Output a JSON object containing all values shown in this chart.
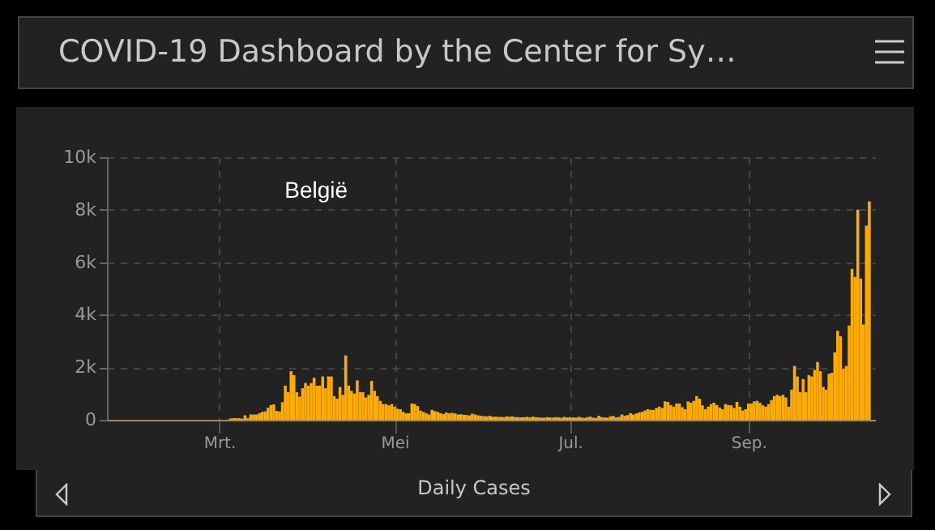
{
  "chart_data": {
    "type": "bar",
    "title": "COVID-19 Dashboard by the Center for Sy…",
    "subtitle": "België",
    "xlabel": "Daily Cases",
    "x": [
      "--03-01",
      "--03-02",
      "--03-03",
      "--03-04",
      "--03-05",
      "--03-06",
      "--03-07",
      "--03-08",
      "--03-09",
      "--03-10",
      "--03-11",
      "--03-12",
      "--03-13",
      "--03-14",
      "--03-15",
      "--03-16",
      "--03-17",
      "--03-18",
      "--03-19",
      "--03-20",
      "--03-21",
      "--03-22",
      "--03-23",
      "--03-24",
      "--03-25",
      "--03-26",
      "--03-27",
      "--03-28",
      "--03-29",
      "--03-30",
      "--03-31",
      "--04-01",
      "--04-02",
      "--04-03",
      "--04-04",
      "--04-05",
      "--04-06",
      "--04-07",
      "--04-08",
      "--04-09",
      "--04-10",
      "--04-11",
      "--04-12",
      "--04-13",
      "--04-14",
      "--04-15",
      "--04-16",
      "--04-17",
      "--04-18",
      "--04-19",
      "--04-20",
      "--04-21",
      "--04-22",
      "--04-23",
      "--04-24",
      "--04-25",
      "--04-26",
      "--04-27",
      "--04-28",
      "--04-29",
      "--04-30",
      "--05-01",
      "--05-02",
      "--05-03",
      "--05-04",
      "--05-05",
      "--05-06",
      "--05-07",
      "--05-08",
      "--05-09",
      "--05-10",
      "--05-11",
      "--05-12",
      "--05-13",
      "--05-14",
      "--05-15",
      "--05-16",
      "--05-17",
      "--05-18",
      "--05-19",
      "--05-20",
      "--05-21",
      "--05-22",
      "--05-23",
      "--05-24",
      "--05-25",
      "--05-26",
      "--05-27",
      "--05-28",
      "--05-29",
      "--05-30",
      "--05-31",
      "--06-01",
      "--06-02",
      "--06-03",
      "--06-04",
      "--06-05",
      "--06-06",
      "--06-07",
      "--06-08",
      "--06-09",
      "--06-10",
      "--06-11",
      "--06-12",
      "--06-13",
      "--06-14",
      "--06-15",
      "--06-16",
      "--06-17",
      "--06-18",
      "--06-19",
      "--06-20",
      "--06-21",
      "--06-22",
      "--06-23",
      "--06-24",
      "--06-25",
      "--06-26",
      "--06-27",
      "--06-28",
      "--06-29",
      "--06-30",
      "--07-01",
      "--07-02",
      "--07-03",
      "--07-04",
      "--07-05",
      "--07-06",
      "--07-07",
      "--07-08",
      "--07-09",
      "--07-10",
      "--07-11",
      "--07-12",
      "--07-13",
      "--07-14",
      "--07-15",
      "--07-16",
      "--07-17",
      "--07-18",
      "--07-19",
      "--07-20",
      "--07-21",
      "--07-22",
      "--07-23",
      "--07-24",
      "--07-25",
      "--07-26",
      "--07-27",
      "--07-28",
      "--07-29",
      "--07-30",
      "--07-31",
      "--08-01",
      "--08-02",
      "--08-03",
      "--08-04",
      "--08-05",
      "--08-06",
      "--08-07",
      "--08-08",
      "--08-09",
      "--08-10",
      "--08-11",
      "--08-12",
      "--08-13",
      "--08-14",
      "--08-15",
      "--08-16",
      "--08-17",
      "--08-18",
      "--08-19",
      "--08-20",
      "--08-21",
      "--08-22",
      "--08-23",
      "--08-24",
      "--08-25",
      "--08-26",
      "--08-27",
      "--08-28",
      "--08-29",
      "--08-30",
      "--08-31",
      "--09-01",
      "--09-02",
      "--09-03",
      "--09-04",
      "--09-05",
      "--09-06",
      "--09-07",
      "--09-08",
      "--09-09",
      "--09-10",
      "--09-11",
      "--09-12",
      "--09-13",
      "--09-14",
      "--09-15",
      "--09-16",
      "--09-17",
      "--09-18",
      "--09-19",
      "--09-20",
      "--09-21",
      "--09-22",
      "--09-23",
      "--09-24",
      "--09-25",
      "--09-26",
      "--09-27",
      "--09-28",
      "--09-29",
      "--09-30",
      "--10-01",
      "--10-02",
      "--10-03",
      "--10-04",
      "--10-05",
      "--10-06",
      "--10-07",
      "--10-08",
      "--10-09",
      "--10-10",
      "--10-11",
      "--10-12",
      "--10-13"
    ],
    "values": [
      0,
      0,
      0,
      10,
      50,
      60,
      60,
      60,
      40,
      170,
      60,
      200,
      200,
      200,
      250,
      300,
      320,
      460,
      560,
      590,
      340,
      320,
      670,
      1300,
      1050,
      1850,
      1700,
      1050,
      880,
      1200,
      1400,
      1300,
      1400,
      1600,
      1300,
      1300,
      1650,
      1200,
      1650,
      1650,
      900,
      800,
      1250,
      950,
      2450,
      1300,
      1100,
      1000,
      1500,
      1050,
      1050,
      850,
      950,
      1480,
      1100,
      900,
      720,
      600,
      600,
      550,
      600,
      500,
      420,
      400,
      300,
      250,
      250,
      620,
      600,
      520,
      350,
      300,
      250,
      200,
      380,
      330,
      300,
      250,
      220,
      280,
      250,
      260,
      240,
      200,
      210,
      190,
      180,
      170,
      230,
      200,
      170,
      150,
      140,
      130,
      150,
      120,
      120,
      110,
      110,
      100,
      130,
      120,
      130,
      100,
      100,
      90,
      100,
      110,
      90,
      120,
      100,
      90,
      80,
      80,
      100,
      90,
      80,
      100,
      90,
      80,
      110,
      90,
      100,
      90,
      80,
      110,
      90,
      70,
      100,
      120,
      80,
      70,
      150,
      100,
      90,
      80,
      130,
      150,
      90,
      110,
      200,
      150,
      180,
      250,
      200,
      240,
      280,
      300,
      350,
      400,
      380,
      370,
      450,
      500,
      450,
      700,
      680,
      560,
      500,
      620,
      620,
      480,
      400,
      700,
      650,
      720,
      900,
      800,
      550,
      400,
      500,
      600,
      650,
      560,
      470,
      400,
      600,
      560,
      550,
      450,
      680,
      500,
      350,
      400,
      620,
      620,
      700,
      720,
      650,
      550,
      500,
      600,
      750,
      900,
      950,
      900,
      950,
      850,
      500,
      1150,
      2050,
      1650,
      1050,
      1550,
      1050,
      1700,
      1650,
      1900,
      2200,
      1850,
      1250,
      1150,
      1750,
      1790,
      2570,
      3390,
      3180,
      1950,
      2050,
      3590,
      5750,
      5440,
      8000,
      5380,
      3630,
      7390,
      8320
    ],
    "color": "#ffab00",
    "xlim": [
      "--01-22",
      "--10-15"
    ],
    "xticks": [
      {
        "value": "--03-01",
        "label": "Mrt."
      },
      {
        "value": "--05-01",
        "label": "Mei"
      },
      {
        "value": "--07-01",
        "label": "Jul."
      },
      {
        "value": "--09-01",
        "label": "Sep."
      }
    ],
    "ylim": [
      0,
      10000
    ],
    "yticks": [
      {
        "value": 0,
        "label": "0"
      },
      {
        "value": 2000,
        "label": "2k"
      },
      {
        "value": 4000,
        "label": "4k"
      },
      {
        "value": 6000,
        "label": "6k"
      },
      {
        "value": 8000,
        "label": "8k"
      },
      {
        "value": 10000,
        "label": "10k"
      }
    ],
    "grid": true
  }
}
